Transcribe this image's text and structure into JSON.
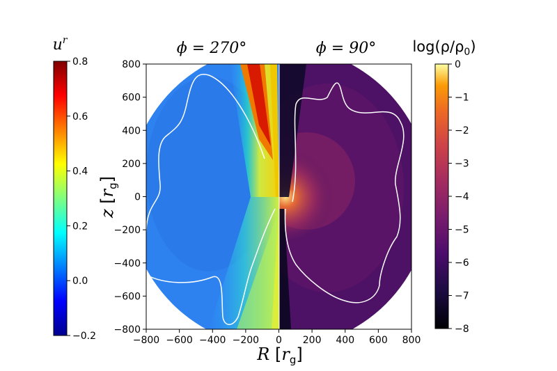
{
  "chart_data": {
    "type": "heatmap",
    "panels": [
      {
        "title": "ϕ = 270°",
        "side": "left",
        "quantity": "u^r"
      },
      {
        "title": "ϕ = 90°",
        "side": "right",
        "quantity": "log(ρ/ρ₀)"
      }
    ],
    "xlabel": "R [r_g]",
    "ylabel": "z [r_g]",
    "xlim": [
      -800,
      800
    ],
    "ylim": [
      -800,
      800
    ],
    "xticks": [
      "−800",
      "−600",
      "−400",
      "−200",
      "0",
      "200",
      "400",
      "600",
      "800"
    ],
    "yticks": [
      "800",
      "600",
      "400",
      "200",
      "0",
      "−200",
      "−400",
      "−600",
      "−800"
    ],
    "colorbars": [
      {
        "label": "u^r",
        "label_base": "u",
        "label_sup": "r",
        "colormap": "jet",
        "range": [
          -0.2,
          0.8
        ],
        "ticks": [
          "0.8",
          "0.6",
          "0.4",
          "0.2",
          "0.0",
          "−0.2"
        ],
        "side": "left"
      },
      {
        "label": "log(ρ/ρ₀)",
        "label_text": "log(ρ/ρ",
        "label_sub": "0",
        "label_close": ")",
        "colormap": "inferno",
        "range": [
          -8,
          0
        ],
        "ticks": [
          "0",
          "−1",
          "−2",
          "−3",
          "−4",
          "−5",
          "−6",
          "−7",
          "−8"
        ],
        "side": "right"
      }
    ],
    "contour_color": "#ffffff",
    "grid": false
  }
}
